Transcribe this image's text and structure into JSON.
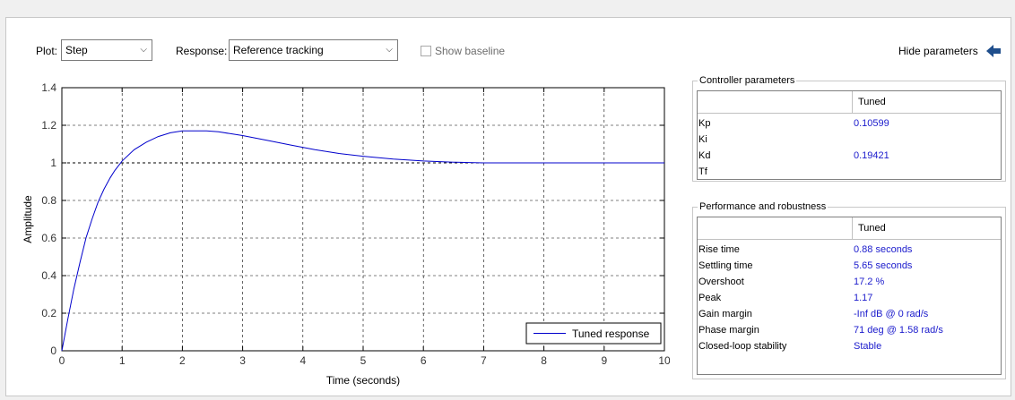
{
  "toolbar": {
    "plot_label": "Plot:",
    "plot_value": "Step",
    "response_label": "Response:",
    "response_value": "Reference tracking",
    "show_baseline_label": "Show baseline",
    "hide_parameters_label": "Hide parameters"
  },
  "controller_parameters": {
    "title": "Controller parameters",
    "column": "Tuned",
    "rows": [
      {
        "name": "Kp",
        "value": "0.10599"
      },
      {
        "name": "Ki",
        "value": ""
      },
      {
        "name": "Kd",
        "value": "0.19421"
      },
      {
        "name": "Tf",
        "value": ""
      }
    ]
  },
  "performance": {
    "title": "Performance and robustness",
    "column": "Tuned",
    "rows": [
      {
        "name": "Rise time",
        "value": "0.88 seconds"
      },
      {
        "name": "Settling time",
        "value": "5.65 seconds"
      },
      {
        "name": "Overshoot",
        "value": "17.2 %"
      },
      {
        "name": "Peak",
        "value": "1.17"
      },
      {
        "name": "Gain margin",
        "value": "-Inf dB @ 0 rad/s"
      },
      {
        "name": "Phase margin",
        "value": "71 deg @ 1.58 rad/s"
      },
      {
        "name": "Closed-loop stability",
        "value": "Stable"
      }
    ]
  },
  "colors": {
    "line": "#0000cc",
    "value_text": "#1a1acc",
    "arrow": "#1f4e8c"
  },
  "icons": {
    "hide_parameters": "left-arrow-icon",
    "dropdown": "chevron-down-icon"
  },
  "chart_data": {
    "type": "line",
    "xlabel": "Time (seconds)",
    "ylabel": "Amplitude",
    "xlim": [
      0,
      10
    ],
    "ylim": [
      0,
      1.4
    ],
    "xticks": [
      "0",
      "1",
      "2",
      "3",
      "4",
      "5",
      "6",
      "7",
      "8",
      "9",
      "10"
    ],
    "yticks": [
      "0",
      "0.2",
      "0.4",
      "0.6",
      "0.8",
      "1",
      "1.2",
      "1.4"
    ],
    "grid": true,
    "legend_placement": "bottom-right",
    "reference_line": 1,
    "series": [
      {
        "name": "Tuned response",
        "x": [
          0,
          0.1,
          0.2,
          0.3,
          0.4,
          0.5,
          0.6,
          0.7,
          0.8,
          0.88,
          1.0,
          1.2,
          1.4,
          1.6,
          1.8,
          2.0,
          2.2,
          2.4,
          2.6,
          2.8,
          3.0,
          3.4,
          3.8,
          4.2,
          4.6,
          5.0,
          5.5,
          6.0,
          6.5,
          7.0,
          8.0,
          9.0,
          10.0
        ],
        "values": [
          0,
          0.17,
          0.33,
          0.47,
          0.6,
          0.7,
          0.79,
          0.86,
          0.92,
          0.96,
          1.01,
          1.07,
          1.11,
          1.14,
          1.16,
          1.17,
          1.17,
          1.17,
          1.165,
          1.155,
          1.145,
          1.12,
          1.095,
          1.07,
          1.05,
          1.035,
          1.02,
          1.01,
          1.004,
          1.0,
          1.0,
          1.0,
          1.0
        ]
      }
    ]
  }
}
